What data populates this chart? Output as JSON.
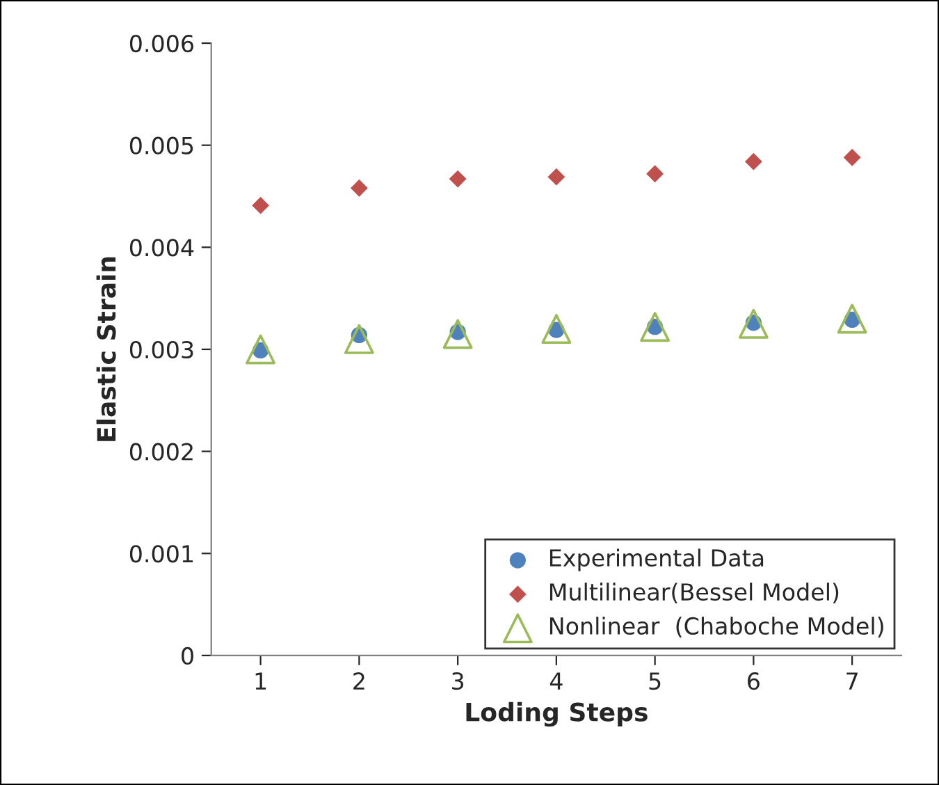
{
  "chart_data": {
    "type": "scatter",
    "xlabel": "Loding Steps",
    "ylabel": "Elastic Strain",
    "categories": [
      "1",
      "2",
      "3",
      "4",
      "5",
      "6",
      "7"
    ],
    "series": [
      {
        "name": "Experimental Data",
        "color": "#4f81bd",
        "marker": "circle",
        "values": [
          0.00299,
          0.00314,
          0.00317,
          0.00319,
          0.00322,
          0.00326,
          0.00329
        ]
      },
      {
        "name": "Multilinear(Bessel Model)",
        "color": "#c0504d",
        "marker": "diamond",
        "values": [
          0.00441,
          0.00458,
          0.00467,
          0.00469,
          0.00472,
          0.00484,
          0.00488
        ]
      },
      {
        "name": "Nonlinear  (Chaboche Model)",
        "color": "#9bbb59",
        "marker": "triangle",
        "values": [
          0.003,
          0.0031,
          0.00315,
          0.0032,
          0.00322,
          0.00325,
          0.0033
        ]
      }
    ],
    "ylim": [
      0,
      0.006
    ],
    "yticks": [
      0,
      0.001,
      0.002,
      0.003,
      0.004,
      0.005,
      0.006
    ],
    "grid": false,
    "legend": "bottom right"
  }
}
